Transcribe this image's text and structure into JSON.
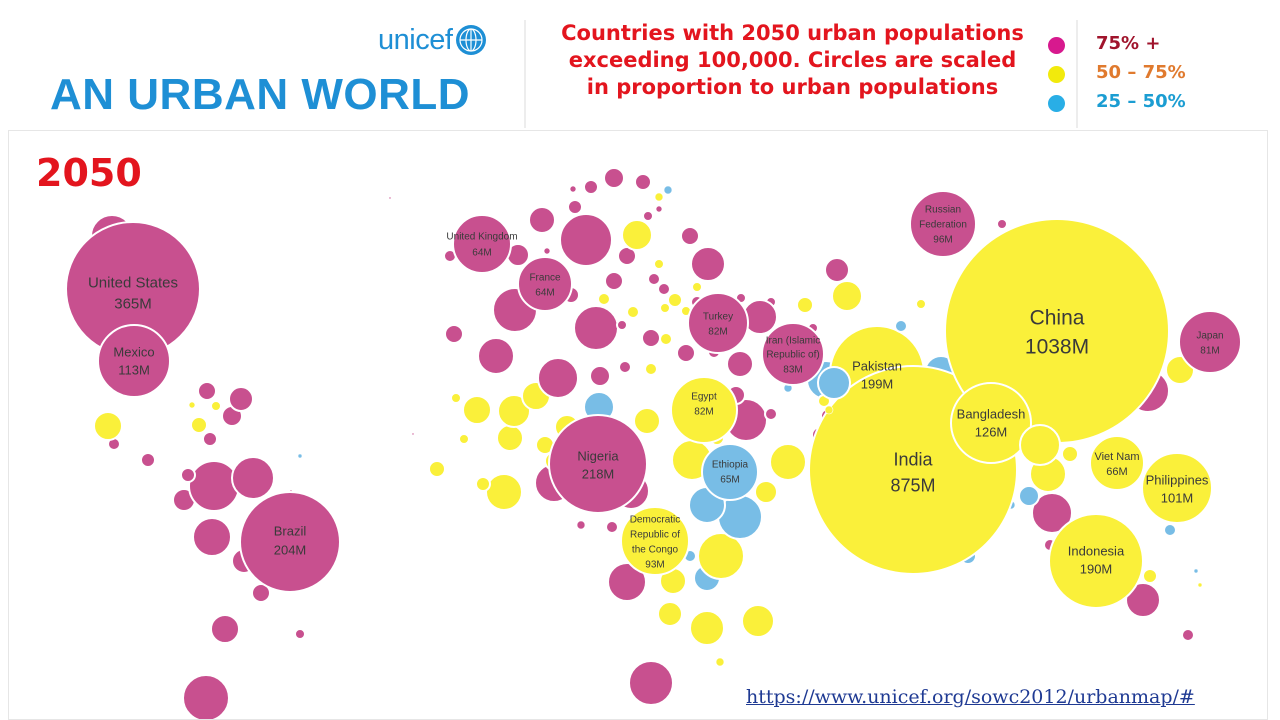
{
  "header": {
    "org_name": "unicef",
    "title": "AN URBAN WORLD",
    "description": "Countries with 2050 urban populations exceeding 100,000.  Circles are scaled in proportion to urban populations",
    "icons": {
      "logo": "unicef-globe-icon"
    }
  },
  "legend": {
    "items": [
      {
        "label": "75% +",
        "color": "#d7198e",
        "text_color": "#a0142c"
      },
      {
        "label": "50 – 75%",
        "color": "#f2ea0c",
        "text_color": "#e07a2e"
      },
      {
        "label": "25 – 50%",
        "color": "#29aee6",
        "text_color": "#1b9dd2"
      }
    ]
  },
  "map": {
    "year": "2050",
    "colors": {
      "pink": "#c8508f",
      "yellow": "#faf03a",
      "blue": "#78bde6"
    },
    "labeled_countries": [
      {
        "name": "United States",
        "value": "365M",
        "category": "pink"
      },
      {
        "name": "Mexico",
        "value": "113M",
        "category": "pink"
      },
      {
        "name": "Brazil",
        "value": "204M",
        "category": "pink"
      },
      {
        "name": "United Kingdom",
        "value": "64M",
        "category": "pink"
      },
      {
        "name": "France",
        "value": "64M",
        "category": "pink"
      },
      {
        "name": "Turkey",
        "value": "82M",
        "category": "pink"
      },
      {
        "name": "Iran (Islamic Republic of)",
        "value": "83M",
        "category": "pink"
      },
      {
        "name": "Russian Federation",
        "value": "96M",
        "category": "pink"
      },
      {
        "name": "Nigeria",
        "value": "218M",
        "category": "pink"
      },
      {
        "name": "Egypt",
        "value": "82M",
        "category": "yellow"
      },
      {
        "name": "Ethiopia",
        "value": "65M",
        "category": "blue"
      },
      {
        "name": "Democratic Republic of the Congo",
        "value": "93M",
        "category": "yellow"
      },
      {
        "name": "Pakistan",
        "value": "199M",
        "category": "yellow"
      },
      {
        "name": "India",
        "value": "875M",
        "category": "yellow"
      },
      {
        "name": "China",
        "value": "1038M",
        "category": "yellow"
      },
      {
        "name": "Bangladesh",
        "value": "126M",
        "category": "yellow"
      },
      {
        "name": "Japan",
        "value": "81M",
        "category": "pink"
      },
      {
        "name": "Viet Nam",
        "value": "66M",
        "category": "yellow"
      },
      {
        "name": "Philippines",
        "value": "101M",
        "category": "yellow"
      },
      {
        "name": "Indonesia",
        "value": "190M",
        "category": "yellow"
      }
    ]
  },
  "source": {
    "link_text": "https://www.unicef.org/sowc2012/urbanmap/#"
  }
}
